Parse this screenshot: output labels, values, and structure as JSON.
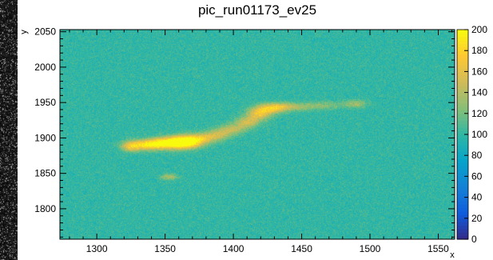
{
  "chart_data": {
    "type": "heatmap",
    "title": "pic_run01173_ev25",
    "xlabel": "x",
    "ylabel": "y",
    "xlim": [
      1273,
      1562
    ],
    "ylim": [
      1757,
      2053
    ],
    "x_ticks": [
      1300,
      1350,
      1400,
      1450,
      1500,
      1550
    ],
    "y_ticks": [
      1800,
      1850,
      1900,
      1950,
      2000,
      2050
    ],
    "x_tick_labels": [
      "1300",
      "1350",
      "1400",
      "1450",
      "1500",
      "1550"
    ],
    "y_tick_labels": [
      "1800",
      "1850",
      "1900",
      "1950",
      "2000",
      "2050"
    ],
    "z_range": [
      0,
      200
    ],
    "z_ticks": [
      0,
      20,
      40,
      60,
      80,
      100,
      120,
      140,
      160,
      180,
      200
    ],
    "z_tick_labels": [
      "0",
      "20",
      "40",
      "60",
      "80",
      "100",
      "120",
      "140",
      "160",
      "180",
      "200"
    ],
    "background_level": 100,
    "palette": [
      "#352a87",
      "#0f5cdd",
      "#1481d6",
      "#06a4ca",
      "#2eb7a4",
      "#87bf77",
      "#d1bb59",
      "#fec832",
      "#f9fb0e"
    ],
    "grid": false,
    "colorbar_placement": "right",
    "blobs": [
      {
        "x": 1325,
        "y": 1888,
        "sx": 5,
        "sy": 5,
        "amplitude": 55
      },
      {
        "x": 1335,
        "y": 1890,
        "sx": 8,
        "sy": 5,
        "amplitude": 60
      },
      {
        "x": 1345,
        "y": 1892,
        "sx": 8,
        "sy": 5,
        "amplitude": 62
      },
      {
        "x": 1355,
        "y": 1893,
        "sx": 8,
        "sy": 6,
        "amplitude": 68
      },
      {
        "x": 1363,
        "y": 1894,
        "sx": 7,
        "sy": 6,
        "amplitude": 72
      },
      {
        "x": 1370,
        "y": 1895,
        "sx": 7,
        "sy": 6,
        "amplitude": 62
      },
      {
        "x": 1380,
        "y": 1900,
        "sx": 8,
        "sy": 5,
        "amplitude": 45
      },
      {
        "x": 1390,
        "y": 1906,
        "sx": 7,
        "sy": 5,
        "amplitude": 38
      },
      {
        "x": 1400,
        "y": 1913,
        "sx": 7,
        "sy": 5,
        "amplitude": 40
      },
      {
        "x": 1410,
        "y": 1922,
        "sx": 6,
        "sy": 5,
        "amplitude": 48
      },
      {
        "x": 1418,
        "y": 1933,
        "sx": 6,
        "sy": 6,
        "amplitude": 58
      },
      {
        "x": 1426,
        "y": 1941,
        "sx": 7,
        "sy": 5,
        "amplitude": 65
      },
      {
        "x": 1436,
        "y": 1944,
        "sx": 7,
        "sy": 4,
        "amplitude": 40
      },
      {
        "x": 1450,
        "y": 1944,
        "sx": 9,
        "sy": 4,
        "amplitude": 25
      },
      {
        "x": 1468,
        "y": 1946,
        "sx": 9,
        "sy": 4,
        "amplitude": 22
      },
      {
        "x": 1490,
        "y": 1948,
        "sx": 6,
        "sy": 4,
        "amplitude": 32
      },
      {
        "x": 1353,
        "y": 1845,
        "sx": 4,
        "sy": 3,
        "amplitude": 40
      }
    ]
  }
}
